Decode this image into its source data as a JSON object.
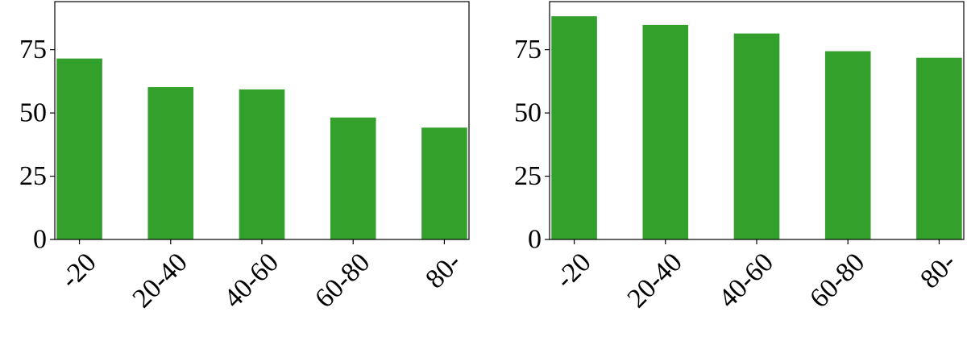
{
  "chart_data": [
    {
      "type": "bar",
      "categories": [
        "-20",
        "20-40",
        "40-60",
        "60-80",
        "80-"
      ],
      "values": [
        71.5,
        60.2,
        59.3,
        48.2,
        44.2
      ],
      "ylim": [
        0,
        94
      ],
      "yticks": [
        0,
        25,
        50,
        75
      ],
      "bar_color": "#33a02c",
      "grid": false
    },
    {
      "type": "bar",
      "categories": [
        "-20",
        "20-40",
        "40-60",
        "60-80",
        "80-"
      ],
      "values": [
        88.2,
        84.8,
        81.4,
        74.4,
        71.8
      ],
      "ylim": [
        0,
        94
      ],
      "yticks": [
        0,
        25,
        50,
        75
      ],
      "bar_color": "#33a02c",
      "grid": false
    }
  ]
}
